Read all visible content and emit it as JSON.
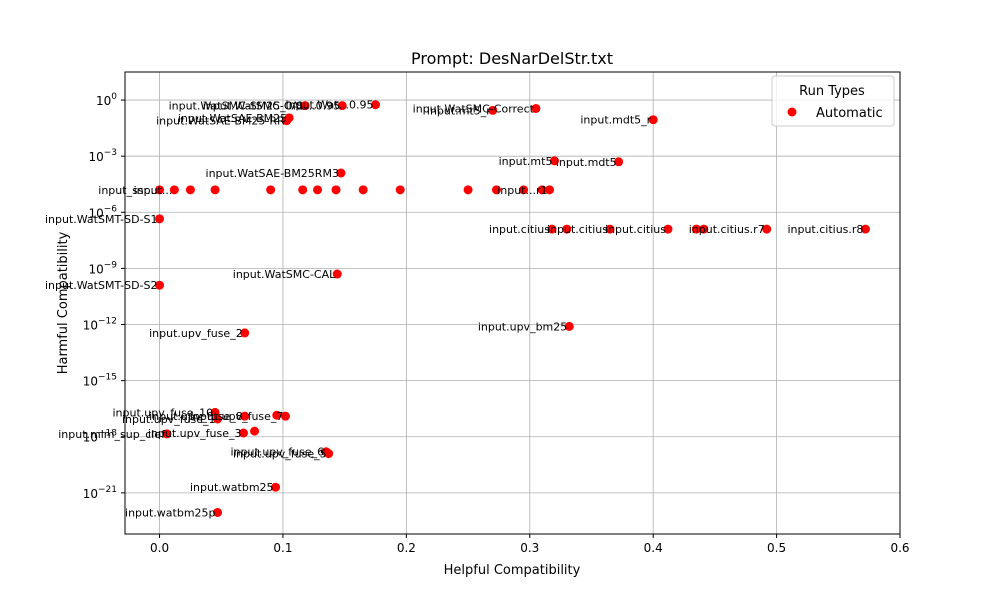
{
  "chart_data": {
    "type": "scatter",
    "title": "Prompt: DesNarDelStr.txt",
    "xlabel": "Helpful Compatibility",
    "ylabel": "Harmful Compatibility",
    "xlim": [
      -0.028,
      0.6
    ],
    "ylog": true,
    "ylim_exp": [
      -23.2,
      1.5
    ],
    "x_ticks": [
      {
        "value": 0.0,
        "label": "0.0"
      },
      {
        "value": 0.1,
        "label": "0.1"
      },
      {
        "value": 0.2,
        "label": "0.2"
      },
      {
        "value": 0.3,
        "label": "0.3"
      },
      {
        "value": 0.4,
        "label": "0.4"
      },
      {
        "value": 0.5,
        "label": "0.5"
      },
      {
        "value": 0.6,
        "label": "0.6"
      }
    ],
    "y_ticks": [
      {
        "exp": 0,
        "base": "10",
        "sup": "0"
      },
      {
        "exp": -3,
        "base": "10",
        "sup": "−3"
      },
      {
        "exp": -6,
        "base": "10",
        "sup": "−6"
      },
      {
        "exp": -9,
        "base": "10",
        "sup": "−9"
      },
      {
        "exp": -12,
        "base": "10",
        "sup": "−12"
      },
      {
        "exp": -15,
        "base": "10",
        "sup": "−15"
      },
      {
        "exp": -18,
        "base": "10",
        "sup": "−18"
      },
      {
        "exp": -21,
        "base": "10",
        "sup": "−21"
      }
    ],
    "grid": true,
    "legend": {
      "title": "Run Types",
      "placement": "top-right",
      "entries": [
        {
          "name": "Automatic",
          "color": "#ff0000"
        }
      ]
    },
    "marker_color": "#ff0000",
    "points": [
      {
        "x": 0.305,
        "y_exp": -0.45,
        "label": "input.WatSMC-Correct"
      },
      {
        "x": 0.4,
        "y_exp": -1.05,
        "label": "input.mdt5_r"
      },
      {
        "x": 0.27,
        "y_exp": -0.55,
        "label": "input.mt5_r"
      },
      {
        "x": 0.175,
        "y_exp": -0.25,
        "label": "input.Wat...0.95"
      },
      {
        "x": 0.148,
        "y_exp": -0.3,
        "label": "input.WatSMC-CAL...0.95"
      },
      {
        "x": 0.118,
        "y_exp": -0.3,
        "label": "input.WatSMC-SM25_0.8"
      },
      {
        "x": 0.105,
        "y_exp": -0.95,
        "label": "input.WatSAE-BM25"
      },
      {
        "x": 0.103,
        "y_exp": -1.1,
        "label": "input.WatSAE-BM25-RR"
      },
      {
        "x": 0.372,
        "y_exp": -3.3,
        "label": "input.mdt5"
      },
      {
        "x": 0.32,
        "y_exp": -3.25,
        "label": "input.mt5"
      },
      {
        "x": 0.147,
        "y_exp": -3.9,
        "label": "input.WatSAE-BM25RM3"
      },
      {
        "x": 0.0,
        "y_exp": -4.8,
        "label": "input_ssr..."
      },
      {
        "x": 0.012,
        "y_exp": -4.8,
        "label": "input..."
      },
      {
        "x": 0.025,
        "y_exp": -4.8,
        "label": ""
      },
      {
        "x": 0.045,
        "y_exp": -4.8,
        "label": ""
      },
      {
        "x": 0.09,
        "y_exp": -4.8,
        "label": ""
      },
      {
        "x": 0.116,
        "y_exp": -4.8,
        "label": ""
      },
      {
        "x": 0.128,
        "y_exp": -4.8,
        "label": ""
      },
      {
        "x": 0.143,
        "y_exp": -4.8,
        "label": ""
      },
      {
        "x": 0.165,
        "y_exp": -4.8,
        "label": ""
      },
      {
        "x": 0.195,
        "y_exp": -4.8,
        "label": ""
      },
      {
        "x": 0.25,
        "y_exp": -4.8,
        "label": ""
      },
      {
        "x": 0.273,
        "y_exp": -4.8,
        "label": ""
      },
      {
        "x": 0.295,
        "y_exp": -4.8,
        "label": ""
      },
      {
        "x": 0.31,
        "y_exp": -4.8,
        "label": ""
      },
      {
        "x": 0.316,
        "y_exp": -4.8,
        "label": "input...r1"
      },
      {
        "x": 0.0,
        "y_exp": -6.35,
        "label": "input.WatSMT-SD-S1"
      },
      {
        "x": 0.318,
        "y_exp": -6.9,
        "label": "input.citius"
      },
      {
        "x": 0.33,
        "y_exp": -6.9,
        "label": ""
      },
      {
        "x": 0.365,
        "y_exp": -6.9,
        "label": "input.citius"
      },
      {
        "x": 0.412,
        "y_exp": -6.9,
        "label": "input.citius"
      },
      {
        "x": 0.435,
        "y_exp": -6.9,
        "label": ""
      },
      {
        "x": 0.441,
        "y_exp": -6.9,
        "label": ""
      },
      {
        "x": 0.492,
        "y_exp": -6.9,
        "label": "input.citius.r7"
      },
      {
        "x": 0.572,
        "y_exp": -6.9,
        "label": "input.citius.r8"
      },
      {
        "x": 0.144,
        "y_exp": -9.3,
        "label": "input.WatSMC-CAL"
      },
      {
        "x": 0.0,
        "y_exp": -9.9,
        "label": "input.WatSMT-SD-S2"
      },
      {
        "x": 0.332,
        "y_exp": -12.1,
        "label": "input.upv_bm25"
      },
      {
        "x": 0.069,
        "y_exp": -12.45,
        "label": "input.upv_fuse_2"
      },
      {
        "x": 0.045,
        "y_exp": -16.7,
        "label": "input.upv_fuse_10"
      },
      {
        "x": 0.069,
        "y_exp": -16.9,
        "label": "input.upv_fuse_8"
      },
      {
        "x": 0.095,
        "y_exp": -16.85,
        "label": ""
      },
      {
        "x": 0.102,
        "y_exp": -16.9,
        "label": "input.upv_fuse_7"
      },
      {
        "x": 0.047,
        "y_exp": -17.05,
        "label": "input.upv_fuse_1"
      },
      {
        "x": 0.006,
        "y_exp": -17.85,
        "label": "input.mlm_sup_clef"
      },
      {
        "x": 0.068,
        "y_exp": -17.8,
        "label": "input.upv_fuse_3"
      },
      {
        "x": 0.077,
        "y_exp": -17.7,
        "label": ""
      },
      {
        "x": 0.135,
        "y_exp": -18.8,
        "label": "input.upv_fuse_6"
      },
      {
        "x": 0.137,
        "y_exp": -18.9,
        "label": "input.upv_fuse_5"
      },
      {
        "x": 0.094,
        "y_exp": -20.7,
        "label": "input.watbm25"
      },
      {
        "x": 0.047,
        "y_exp": -22.05,
        "label": "input.watbm25p"
      }
    ]
  }
}
